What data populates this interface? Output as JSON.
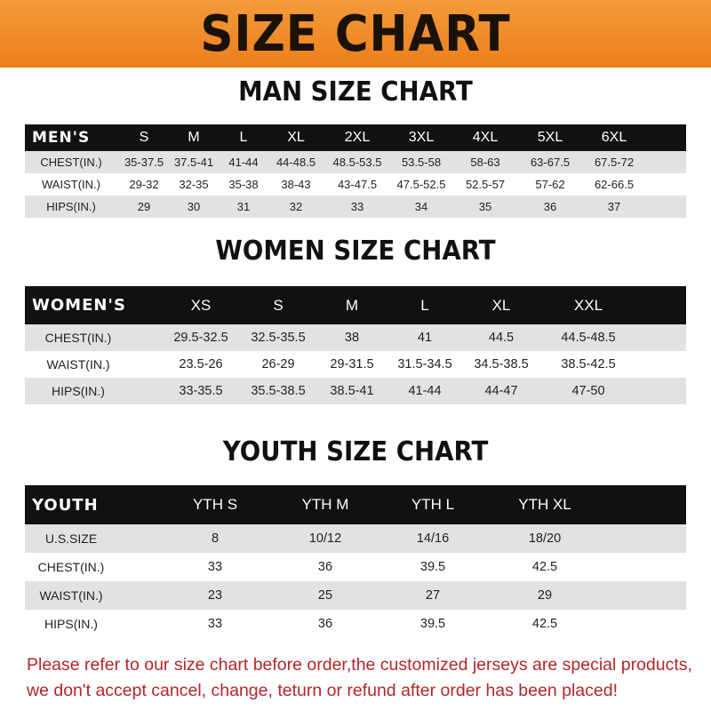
{
  "banner": {
    "title": "SIZE CHART",
    "color": "#ee8a2a"
  },
  "men": {
    "title": "MAN SIZE CHART",
    "header": [
      "MEN'S",
      "S",
      "M",
      "L",
      "XL",
      "2XL",
      "3XL",
      "4XL",
      "5XL",
      "6XL"
    ],
    "rows": [
      [
        "CHEST(IN.)",
        "35-37.5",
        "37.5-41",
        "41-44",
        "44-48.5",
        "48.5-53.5",
        "53.5-58",
        "58-63",
        "63-67.5",
        "67.5-72"
      ],
      [
        "WAIST(IN.)",
        "29-32",
        "32-35",
        "35-38",
        "38-43",
        "43-47.5",
        "47.5-52.5",
        "52.5-57",
        "57-62",
        "62-66.5"
      ],
      [
        "HIPS(IN.)",
        "29",
        "30",
        "31",
        "32",
        "33",
        "34",
        "35",
        "36",
        "37"
      ]
    ]
  },
  "women": {
    "title": "WOMEN SIZE CHART",
    "header": [
      "WOMEN'S",
      "XS",
      "S",
      "M",
      "L",
      "XL",
      "XXL"
    ],
    "rows": [
      [
        "CHEST(IN.)",
        "29.5-32.5",
        "32.5-35.5",
        "38",
        "41",
        "44.5",
        "44.5-48.5"
      ],
      [
        "WAIST(IN.)",
        "23.5-26",
        "26-29",
        "29-31.5",
        "31.5-34.5",
        "34.5-38.5",
        "38.5-42.5"
      ],
      [
        "HIPS(IN.)",
        "33-35.5",
        "35.5-38.5",
        "38.5-41",
        "41-44",
        "44-47",
        "47-50"
      ]
    ]
  },
  "youth": {
    "title": "YOUTH SIZE CHART",
    "header": [
      "YOUTH",
      "YTH S",
      "YTH M",
      "YTH L",
      "YTH XL"
    ],
    "rows": [
      [
        "U.S.SIZE",
        "8",
        "10/12",
        "14/16",
        "18/20"
      ],
      [
        "CHEST(IN.)",
        "33",
        "36",
        "39.5",
        "42.5"
      ],
      [
        "WAIST(IN.)",
        "23",
        "25",
        "27",
        "29"
      ],
      [
        "HIPS(IN.)",
        "33",
        "36",
        "39.5",
        "42.5"
      ]
    ]
  },
  "footer": {
    "line1": "Please refer to our size chart before order,the customized jerseys are special products,",
    "line2": "we don't accept cancel, change, teturn or refund after order has been placed!",
    "color": "#b3262a"
  }
}
